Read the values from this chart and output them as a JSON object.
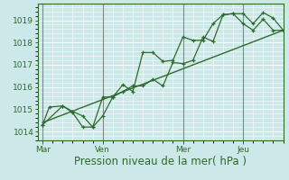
{
  "background_color": "#cce8e8",
  "grid_color": "#ffffff",
  "line_color": "#2d6b2d",
  "xlabel": "Pression niveau de la mer( hPa )",
  "ylim": [
    1013.6,
    1019.75
  ],
  "yticks": [
    1014,
    1015,
    1016,
    1017,
    1018,
    1019
  ],
  "xtick_labels": [
    "Mar",
    "Ven",
    "Mer",
    "Jeu"
  ],
  "xtick_positions": [
    0,
    36,
    84,
    120
  ],
  "xlim": [
    -3,
    144
  ],
  "line1_x": [
    0,
    4,
    12,
    18,
    24,
    30,
    36,
    42,
    48,
    54,
    60,
    66,
    72,
    78,
    84,
    90,
    96,
    102,
    108,
    114,
    120,
    126,
    132,
    138,
    144
  ],
  "line1_y": [
    1014.3,
    1015.1,
    1015.15,
    1014.85,
    1014.2,
    1014.2,
    1014.7,
    1015.55,
    1015.8,
    1016.05,
    1016.05,
    1016.35,
    1016.05,
    1017.1,
    1017.05,
    1017.2,
    1018.25,
    1018.05,
    1019.25,
    1019.3,
    1019.3,
    1018.85,
    1019.35,
    1019.1,
    1018.55
  ],
  "line2_x": [
    0,
    12,
    18,
    24,
    30,
    36,
    42,
    48,
    54,
    60,
    66,
    72,
    78,
    84,
    90,
    96,
    102,
    108,
    114,
    120,
    126,
    132,
    138,
    144
  ],
  "line2_y": [
    1014.3,
    1015.15,
    1014.9,
    1014.7,
    1014.2,
    1015.55,
    1015.55,
    1016.1,
    1015.8,
    1017.55,
    1017.55,
    1017.15,
    1017.2,
    1018.25,
    1018.1,
    1018.1,
    1018.85,
    1019.25,
    1019.3,
    1018.85,
    1018.55,
    1019.05,
    1018.55,
    1018.55
  ],
  "trend_x": [
    0,
    144
  ],
  "trend_y": [
    1014.4,
    1018.55
  ],
  "vlines_x": [
    0,
    36,
    84,
    120
  ],
  "xlabel_fontsize": 8.5,
  "ytick_fontsize": 6.5,
  "xtick_fontsize": 6.5,
  "vline_color": "#888888",
  "axis_color": "#2d6b2d"
}
